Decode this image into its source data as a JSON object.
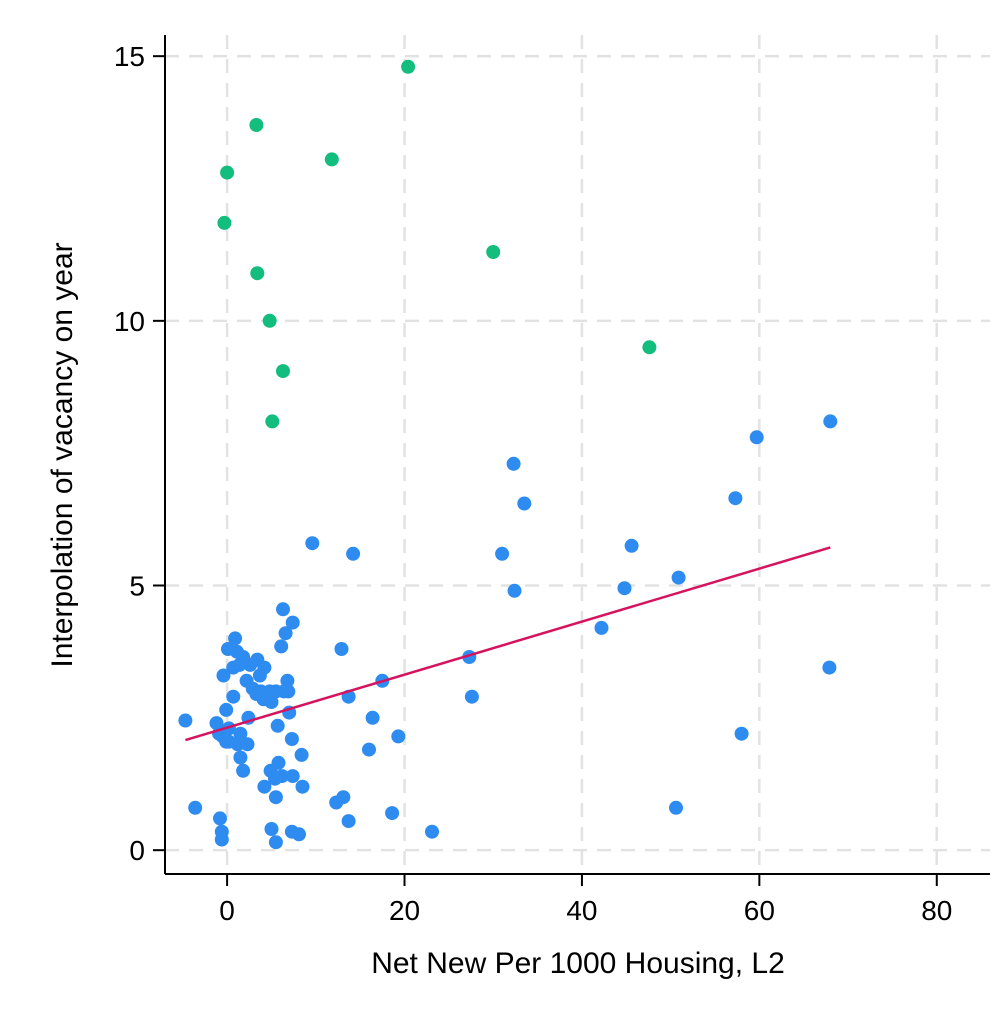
{
  "chart_data": {
    "type": "scatter",
    "title": "",
    "xlabel": "Net New Per 1000 Housing, L2",
    "ylabel": "Interpolation of vacancy on year",
    "xlim": [
      -7,
      86
    ],
    "ylim": [
      -0.45,
      15.4
    ],
    "xticks": [
      0,
      20,
      40,
      60,
      80
    ],
    "yticks": [
      0,
      5,
      10,
      15
    ],
    "grid": true,
    "colors": {
      "blue": "#2e8bf0",
      "green": "#12bd7d",
      "line": "#d5135f",
      "grid": "#e2e2e2"
    },
    "series": [
      {
        "color": "#12bd7d",
        "points": [
          [
            20.4,
            14.8
          ],
          [
            3.3,
            13.7
          ],
          [
            11.8,
            13.05
          ],
          [
            0.0,
            12.8
          ],
          [
            -0.3,
            11.85
          ],
          [
            3.4,
            10.9
          ],
          [
            30.0,
            11.3
          ],
          [
            4.8,
            10.0
          ],
          [
            47.6,
            9.5
          ],
          [
            6.3,
            9.05
          ],
          [
            5.1,
            8.1
          ]
        ]
      },
      {
        "color": "#2e8bf0",
        "points": [
          [
            68.0,
            8.1
          ],
          [
            59.7,
            7.8
          ],
          [
            32.3,
            7.3
          ],
          [
            57.3,
            6.65
          ],
          [
            33.5,
            6.55
          ],
          [
            9.6,
            5.8
          ],
          [
            14.2,
            5.6
          ],
          [
            31.0,
            5.6
          ],
          [
            45.6,
            5.75
          ],
          [
            50.9,
            5.15
          ],
          [
            44.8,
            4.95
          ],
          [
            32.4,
            4.9
          ],
          [
            6.3,
            4.55
          ],
          [
            7.4,
            4.3
          ],
          [
            42.2,
            4.2
          ],
          [
            6.6,
            4.1
          ],
          [
            0.9,
            4.0
          ],
          [
            6.1,
            3.85
          ],
          [
            12.9,
            3.8
          ],
          [
            0.1,
            3.8
          ],
          [
            1.1,
            3.75
          ],
          [
            1.8,
            3.65
          ],
          [
            3.4,
            3.6
          ],
          [
            27.3,
            3.65
          ],
          [
            67.9,
            3.45
          ],
          [
            2.6,
            3.5
          ],
          [
            4.2,
            3.45
          ],
          [
            0.7,
            3.45
          ],
          [
            1.4,
            3.5
          ],
          [
            -0.4,
            3.3
          ],
          [
            2.2,
            3.2
          ],
          [
            3.7,
            3.3
          ],
          [
            6.8,
            3.2
          ],
          [
            17.5,
            3.2
          ],
          [
            2.9,
            3.05
          ],
          [
            3.8,
            3.0
          ],
          [
            4.8,
            3.0
          ],
          [
            5.5,
            3.0
          ],
          [
            6.4,
            3.0
          ],
          [
            6.9,
            3.0
          ],
          [
            3.3,
            2.95
          ],
          [
            4.1,
            2.85
          ],
          [
            5.0,
            2.8
          ],
          [
            0.7,
            2.9
          ],
          [
            13.7,
            2.9
          ],
          [
            27.6,
            2.9
          ],
          [
            -0.1,
            2.65
          ],
          [
            7.0,
            2.6
          ],
          [
            16.4,
            2.5
          ],
          [
            2.4,
            2.5
          ],
          [
            -4.7,
            2.45
          ],
          [
            -1.2,
            2.4
          ],
          [
            5.7,
            2.35
          ],
          [
            0.2,
            2.3
          ],
          [
            1.5,
            2.2
          ],
          [
            -0.9,
            2.2
          ],
          [
            -0.5,
            2.15
          ],
          [
            19.3,
            2.15
          ],
          [
            58.0,
            2.2
          ],
          [
            7.3,
            2.1
          ],
          [
            0.2,
            2.05
          ],
          [
            1.2,
            2.0
          ],
          [
            2.3,
            2.0
          ],
          [
            -0.1,
            2.05
          ],
          [
            16.0,
            1.9
          ],
          [
            8.4,
            1.8
          ],
          [
            1.5,
            1.75
          ],
          [
            5.8,
            1.65
          ],
          [
            1.8,
            1.5
          ],
          [
            4.9,
            1.5
          ],
          [
            6.2,
            1.4
          ],
          [
            7.4,
            1.4
          ],
          [
            5.4,
            1.35
          ],
          [
            4.2,
            1.2
          ],
          [
            8.5,
            1.2
          ],
          [
            5.5,
            1.0
          ],
          [
            13.1,
            1.0
          ],
          [
            12.3,
            0.9
          ],
          [
            -3.6,
            0.8
          ],
          [
            50.6,
            0.8
          ],
          [
            18.6,
            0.7
          ],
          [
            -0.8,
            0.6
          ],
          [
            13.7,
            0.55
          ],
          [
            -0.6,
            0.35
          ],
          [
            5.0,
            0.4
          ],
          [
            7.3,
            0.35
          ],
          [
            23.1,
            0.35
          ],
          [
            8.1,
            0.3
          ],
          [
            -0.6,
            0.2
          ],
          [
            5.5,
            0.15
          ]
        ]
      }
    ],
    "fit_line": {
      "x": [
        -4.7,
        68.0
      ],
      "y": [
        2.08,
        5.72
      ]
    }
  }
}
